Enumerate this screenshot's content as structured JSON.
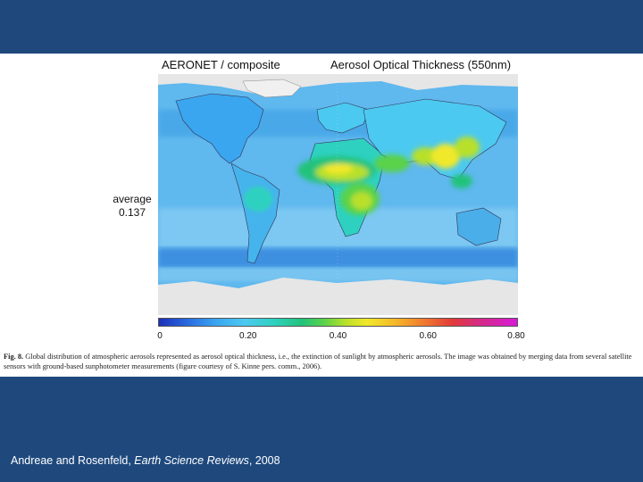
{
  "figure": {
    "title_left": "AERONET / composite",
    "title_right": "Aerosol Optical Thickness (550nm)",
    "average_label": "average",
    "average_value": "0.137",
    "colorbar": {
      "ticks": [
        "0",
        "0.20",
        "0.40",
        "0.60",
        "0.80"
      ],
      "tick_values": [
        0,
        0.2,
        0.4,
        0.6,
        0.8
      ],
      "range": [
        0,
        0.8
      ]
    },
    "caption_label": "Fig. 8.",
    "caption_text": "Global distribution of atmospheric aerosols represented as aerosol optical thickness, i.e., the extinction of sunlight by atmospheric aerosols. The image was obtained by merging data from several satellite sensors with ground-based sunphotometer measurements (figure courtesy of S. Kinne pers. comm., 2006)."
  },
  "citation": {
    "authors": "Andreae and Rosenfeld, ",
    "journal": "Earth Science Reviews",
    "year": ", 2008"
  },
  "colors": {
    "slide_background": "#1f497d",
    "ocean_low": "#58b4ec",
    "high_aerosol": "#f0e82a"
  }
}
